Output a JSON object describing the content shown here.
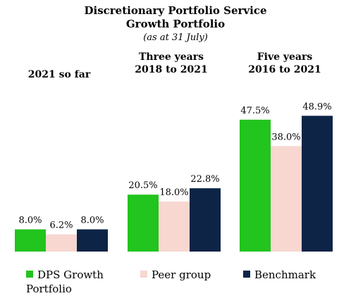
{
  "title": "Discretionary Portfolio Service",
  "subtitle": "Growth Portfolio",
  "note": "(as at 31 July)",
  "chart_data": {
    "type": "bar",
    "categories": [
      "2021 so far",
      "Three years 2018 to 2021",
      "Five years 2016 to 2021"
    ],
    "category_lines": [
      [
        "2021 so far"
      ],
      [
        "Three years",
        "2018 to 2021"
      ],
      [
        "Five years",
        "2016 to 2021"
      ]
    ],
    "series": [
      {
        "name": "DPS Growth Portfolio",
        "values": [
          8.0,
          20.5,
          47.5
        ],
        "labels": [
          "8.0%",
          "20.5%",
          "47.5%"
        ],
        "color": "#22c41e"
      },
      {
        "name": "Peer group",
        "values": [
          6.2,
          18.0,
          38.0
        ],
        "labels": [
          "6.2%",
          "18.0%",
          "38.0%"
        ],
        "color": "#f7d7d0"
      },
      {
        "name": "Benchmark",
        "values": [
          8.0,
          22.8,
          48.9
        ],
        "labels": [
          "8.0%",
          "22.8%",
          "48.9%"
        ],
        "color": "#0d2447"
      }
    ],
    "legend_names": [
      [
        "DPS Growth",
        "Portfolio"
      ],
      [
        "Peer group"
      ],
      [
        "Benchmark"
      ]
    ],
    "ylim": [
      0,
      50
    ],
    "grid": false,
    "legend_position": "bottom"
  }
}
